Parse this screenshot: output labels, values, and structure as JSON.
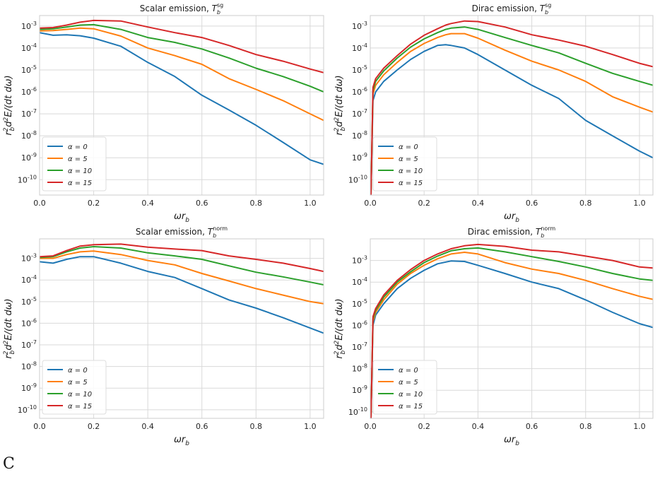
{
  "chart_data": [
    {
      "type": "line",
      "title": "Scalar emission, T_b^sg",
      "xlabel": "ωr_b",
      "ylabel": "r_b^2 d^2E/(dt dω)",
      "yscale": "log",
      "xlim": [
        0,
        1.05
      ],
      "ylim": [
        2e-11,
        0.003
      ],
      "xticks": [
        "0.0",
        "0.2",
        "0.4",
        "0.6",
        "0.8",
        "1.0"
      ],
      "yticks": [
        "10^-10",
        "10^-9",
        "10^-8",
        "10^-7",
        "10^-6",
        "10^-5",
        "10^-4",
        "10^-3"
      ],
      "grid": true,
      "legend_position": "lower-left",
      "x": [
        0.0,
        0.05,
        0.1,
        0.15,
        0.2,
        0.3,
        0.4,
        0.5,
        0.6,
        0.7,
        0.8,
        0.9,
        1.0,
        1.05
      ],
      "series": [
        {
          "name": "α = 0",
          "color": "#1f77b4",
          "values": [
            0.0005,
            0.00038,
            0.0004,
            0.00036,
            0.00028,
            0.00012,
            2.2e-05,
            5e-06,
            7e-07,
            1.5e-07,
            3e-08,
            5e-09,
            8e-10,
            5e-10
          ]
        },
        {
          "name": "α = 5",
          "color": "#ff7f0e",
          "values": [
            0.0006,
            0.00062,
            0.0007,
            0.0008,
            0.00075,
            0.00035,
            0.0001,
            4.5e-05,
            1.8e-05,
            4e-06,
            1.3e-06,
            4e-07,
            1e-07,
            5e-08
          ]
        },
        {
          "name": "α = 10",
          "color": "#2ca02c",
          "values": [
            0.0007,
            0.00075,
            0.0009,
            0.0011,
            0.00115,
            0.0007,
            0.0003,
            0.00018,
            9e-05,
            3.5e-05,
            1.2e-05,
            5e-06,
            1.8e-06,
            1e-06
          ]
        },
        {
          "name": "α = 15",
          "color": "#d62728",
          "values": [
            0.0008,
            0.00085,
            0.0011,
            0.0015,
            0.0018,
            0.0017,
            0.0009,
            0.0005,
            0.0003,
            0.00013,
            5e-05,
            2.5e-05,
            1.1e-05,
            7.5e-06
          ]
        }
      ]
    },
    {
      "type": "line",
      "title": "Dirac emission, T_b^sg",
      "xlabel": "ωr_b",
      "ylabel": "r_b^2 d^2E/(dt dω)",
      "yscale": "log",
      "xlim": [
        0,
        1.05
      ],
      "ylim": [
        2e-11,
        0.003
      ],
      "xticks": [
        "0.0",
        "0.2",
        "0.4",
        "0.6",
        "0.8",
        "1.0"
      ],
      "yticks": [
        "10^-10",
        "10^-9",
        "10^-8",
        "10^-7",
        "10^-6",
        "10^-5",
        "10^-4",
        "10^-3"
      ],
      "grid": true,
      "legend_position": "lower-left",
      "x": [
        0.002,
        0.01,
        0.02,
        0.05,
        0.1,
        0.15,
        0.2,
        0.25,
        0.28,
        0.3,
        0.35,
        0.4,
        0.5,
        0.6,
        0.7,
        0.8,
        0.9,
        1.0,
        1.05
      ],
      "series": [
        {
          "name": "α = 0",
          "color": "#1f77b4",
          "values": [
            1e-11,
            4e-07,
            1e-06,
            3e-06,
            1e-05,
            3e-05,
            7e-05,
            0.00013,
            0.00014,
            0.00013,
            0.0001,
            5e-05,
            1e-05,
            2e-06,
            5e-07,
            5e-08,
            1e-08,
            2e-09,
            1e-09
          ]
        },
        {
          "name": "α = 5",
          "color": "#ff7f0e",
          "values": [
            1e-11,
            8e-07,
            2e-06,
            6e-06,
            2.2e-05,
            7e-05,
            0.00016,
            0.0003,
            0.0004,
            0.00045,
            0.00045,
            0.00028,
            8e-05,
            2.5e-05,
            1e-05,
            3e-06,
            6e-07,
            2e-07,
            1.2e-07
          ]
        },
        {
          "name": "α = 10",
          "color": "#2ca02c",
          "values": [
            1e-11,
            1.2e-06,
            3e-06,
            9e-06,
            3.5e-05,
            0.00011,
            0.00026,
            0.0005,
            0.0007,
            0.0008,
            0.0009,
            0.0007,
            0.0003,
            0.00013,
            6e-05,
            2e-05,
            7e-06,
            3e-06,
            2e-06
          ]
        },
        {
          "name": "α = 15",
          "color": "#d62728",
          "values": [
            1e-11,
            1.6e-06,
            4e-06,
            1.2e-05,
            4.5e-05,
            0.00015,
            0.00038,
            0.00075,
            0.0011,
            0.0013,
            0.0017,
            0.0016,
            0.0009,
            0.0004,
            0.00023,
            0.00012,
            5e-05,
            2e-05,
            1.4e-05
          ]
        }
      ]
    },
    {
      "type": "line",
      "title": "Scalar emission, T_b^norm",
      "xlabel": "ωr_b",
      "ylabel": "r_b^2 d^2E/(dt dω)",
      "yscale": "log",
      "xlim": [
        0,
        1.05
      ],
      "ylim": [
        4e-11,
        0.008
      ],
      "xticks": [
        "0.0",
        "0.2",
        "0.4",
        "0.6",
        "0.8",
        "1.0"
      ],
      "yticks": [
        "10^-10",
        "10^-9",
        "10^-8",
        "10^-7",
        "10^-6",
        "10^-5",
        "10^-4",
        "10^-3"
      ],
      "grid": true,
      "legend_position": "lower-left",
      "x": [
        0.0,
        0.05,
        0.1,
        0.15,
        0.2,
        0.3,
        0.4,
        0.5,
        0.6,
        0.7,
        0.8,
        0.9,
        1.0,
        1.05
      ],
      "series": [
        {
          "name": "α = 0",
          "color": "#1f77b4",
          "values": [
            0.0007,
            0.0006,
            0.0009,
            0.0012,
            0.0012,
            0.0006,
            0.00025,
            0.00013,
            4e-05,
            1.2e-05,
            5e-06,
            1.8e-06,
            6e-07,
            3.5e-07
          ]
        },
        {
          "name": "α = 5",
          "color": "#ff7f0e",
          "values": [
            0.001,
            0.001,
            0.0015,
            0.002,
            0.0022,
            0.0015,
            0.0008,
            0.0005,
            0.0002,
            9e-05,
            4e-05,
            2e-05,
            1e-05,
            8e-06
          ]
        },
        {
          "name": "α = 10",
          "color": "#2ca02c",
          "values": [
            0.0011,
            0.0012,
            0.002,
            0.003,
            0.0035,
            0.003,
            0.0018,
            0.0013,
            0.0009,
            0.00045,
            0.00023,
            0.00014,
            8e-05,
            6e-05
          ]
        },
        {
          "name": "α = 15",
          "color": "#d62728",
          "values": [
            0.0012,
            0.0013,
            0.0023,
            0.0037,
            0.0043,
            0.0046,
            0.0033,
            0.0027,
            0.0023,
            0.0013,
            0.0009,
            0.0006,
            0.00034,
            0.00025
          ]
        }
      ]
    },
    {
      "type": "line",
      "title": "Dirac emission, T_b^norm",
      "xlabel": "ωr_b",
      "ylabel": "r_b^2 d^2E/(dt dω)",
      "yscale": "log",
      "xlim": [
        0,
        1.05
      ],
      "ylim": [
        5e-11,
        0.01
      ],
      "xticks": [
        "0.0",
        "0.2",
        "0.4",
        "0.6",
        "0.8",
        "1.0"
      ],
      "yticks": [
        "10^-10",
        "10^-9",
        "10^-8",
        "10^-7",
        "10^-6",
        "10^-5",
        "10^-4",
        "10^-3"
      ],
      "grid": true,
      "legend_position": "lower-left",
      "x": [
        0.002,
        0.01,
        0.02,
        0.05,
        0.1,
        0.15,
        0.2,
        0.25,
        0.3,
        0.35,
        0.4,
        0.5,
        0.6,
        0.7,
        0.8,
        0.9,
        1.0,
        1.05
      ],
      "series": [
        {
          "name": "α = 0",
          "color": "#1f77b4",
          "values": [
            1e-11,
            1e-06,
            3e-06,
            1e-05,
            5e-05,
            0.00015,
            0.00035,
            0.0007,
            0.00095,
            0.0009,
            0.0006,
            0.00025,
            0.0001,
            5e-05,
            1.5e-05,
            4e-06,
            1.2e-06,
            8e-07
          ]
        },
        {
          "name": "α = 5",
          "color": "#ff7f0e",
          "values": [
            1e-11,
            1.5e-06,
            4e-06,
            1.5e-05,
            8e-05,
            0.00025,
            0.0006,
            0.0012,
            0.002,
            0.0024,
            0.002,
            0.0008,
            0.0004,
            0.00025,
            0.00012,
            5e-05,
            2.2e-05,
            1.6e-05
          ]
        },
        {
          "name": "α = 10",
          "color": "#2ca02c",
          "values": [
            1e-11,
            2e-06,
            5e-06,
            2e-05,
            0.0001,
            0.0003,
            0.0008,
            0.0016,
            0.0028,
            0.0035,
            0.0038,
            0.0025,
            0.0015,
            0.0009,
            0.0005,
            0.00025,
            0.00014,
            0.00012
          ]
        },
        {
          "name": "α = 15",
          "color": "#d62728",
          "values": [
            1e-11,
            2.5e-06,
            6e-06,
            2.5e-05,
            0.00012,
            0.00038,
            0.001,
            0.002,
            0.0035,
            0.0048,
            0.0055,
            0.0045,
            0.003,
            0.0025,
            0.0016,
            0.001,
            0.0005,
            0.00045
          ]
        }
      ]
    }
  ],
  "caption": "C"
}
